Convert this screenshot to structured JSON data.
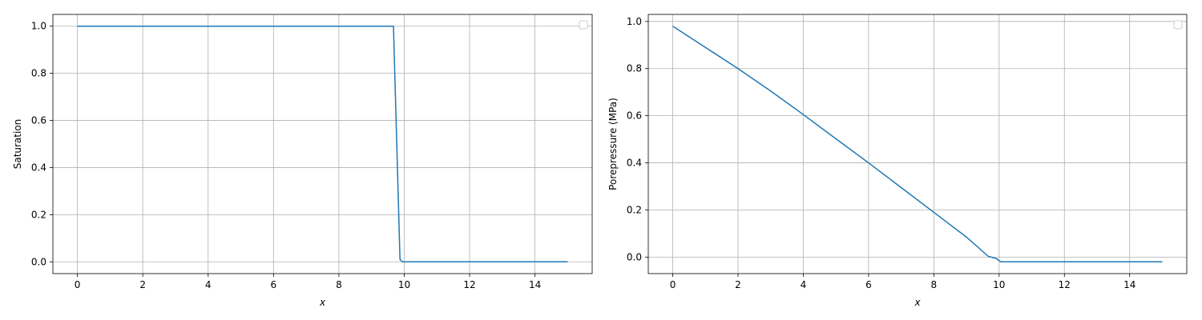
{
  "chart_data": [
    {
      "type": "line",
      "title": "",
      "xlabel": "x",
      "ylabel": "Saturation",
      "xlim": [
        -0.75,
        15.75
      ],
      "ylim": [
        -0.05,
        1.05
      ],
      "xticks": [
        0,
        2,
        4,
        6,
        8,
        10,
        12,
        14
      ],
      "yticks": [
        0.0,
        0.2,
        0.4,
        0.6,
        0.8,
        1.0
      ],
      "xtick_labels": [
        "0",
        "2",
        "4",
        "6",
        "8",
        "10",
        "12",
        "14"
      ],
      "ytick_labels": [
        "0.0",
        "0.2",
        "0.4",
        "0.6",
        "0.8",
        "1.0"
      ],
      "grid": true,
      "legend": {
        "placement": "top-right",
        "entries": []
      },
      "series": [
        {
          "color": "#1f77b4",
          "x": [
            0,
            1,
            2,
            3,
            4,
            5,
            6,
            7,
            8,
            9,
            9.67,
            9.87,
            9.95,
            10.1,
            11,
            12,
            13,
            14,
            15
          ],
          "y": [
            1.0,
            1.0,
            1.0,
            1.0,
            1.0,
            1.0,
            1.0,
            1.0,
            1.0,
            1.0,
            1.0,
            0.01,
            0.0,
            0.0,
            0.0,
            0.0,
            0.0,
            0.0,
            0.0
          ]
        }
      ]
    },
    {
      "type": "line",
      "title": "",
      "xlabel": "x",
      "ylabel": "Porepressure (MPa)",
      "xlim": [
        -0.75,
        15.75
      ],
      "ylim": [
        -0.07,
        1.03
      ],
      "xticks": [
        0,
        2,
        4,
        6,
        8,
        10,
        12,
        14
      ],
      "yticks": [
        0.0,
        0.2,
        0.4,
        0.6,
        0.8,
        1.0
      ],
      "xtick_labels": [
        "0",
        "2",
        "4",
        "6",
        "8",
        "10",
        "12",
        "14"
      ],
      "ytick_labels": [
        "0.0",
        "0.2",
        "0.4",
        "0.6",
        "0.8",
        "1.0"
      ],
      "grid": true,
      "legend": {
        "placement": "top-right",
        "entries": []
      },
      "series": [
        {
          "color": "#1f77b4",
          "x": [
            0,
            1,
            2,
            3,
            4,
            5,
            6,
            7,
            8,
            9,
            9.67,
            9.9,
            10.05,
            10.2,
            11,
            12,
            13,
            14,
            15
          ],
          "y": [
            0.98,
            0.89,
            0.8,
            0.705,
            0.605,
            0.502,
            0.4,
            0.295,
            0.19,
            0.085,
            0.003,
            -0.005,
            -0.02,
            -0.02,
            -0.02,
            -0.02,
            -0.02,
            -0.02,
            -0.02
          ]
        }
      ]
    }
  ]
}
